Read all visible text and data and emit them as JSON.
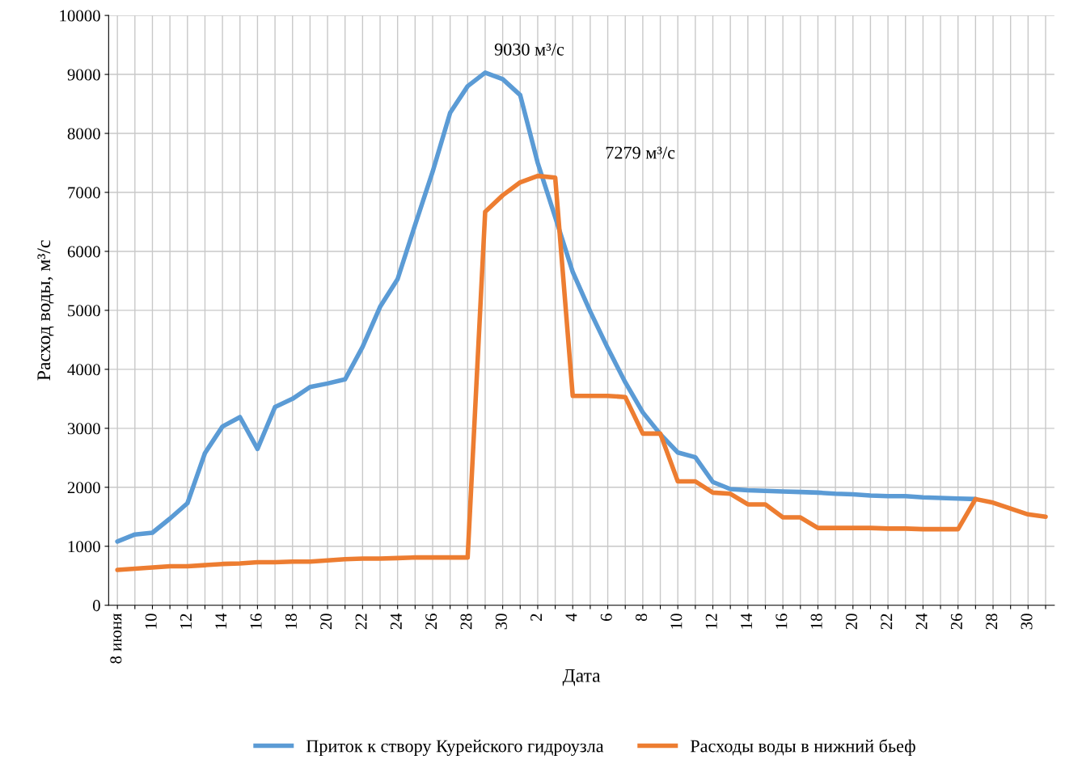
{
  "chart_data": {
    "type": "line",
    "xlabel": "Дата",
    "ylabel": "Расход воды, м³/с",
    "categories": [
      "8 июня",
      null,
      "10",
      null,
      "12",
      null,
      "14",
      null,
      "16",
      null,
      "18",
      null,
      "20",
      null,
      "22",
      null,
      "24",
      null,
      "26",
      null,
      "28",
      null,
      "30",
      null,
      "2",
      null,
      "4",
      null,
      "6",
      null,
      "8",
      null,
      "10",
      null,
      "12",
      null,
      "14",
      null,
      "16",
      null,
      "18",
      null,
      "20",
      null,
      "22",
      null,
      "24",
      null,
      "26",
      null,
      "28",
      null,
      "30",
      null
    ],
    "series": [
      {
        "name": "Приток к створу Курейского гидроузла",
        "color": "#5b9bd5",
        "values": [
          1080,
          1200,
          1230,
          1470,
          1730,
          2580,
          3030,
          3190,
          2650,
          3360,
          3500,
          3700,
          3760,
          3830,
          4380,
          5060,
          5530,
          6450,
          7350,
          8350,
          8800,
          9030,
          8920,
          8650,
          7500,
          6580,
          5650,
          4980,
          4360,
          3780,
          3270,
          2900,
          2590,
          2510,
          2090,
          1970,
          1950,
          1940,
          1930,
          1920,
          1910,
          1890,
          1880,
          1860,
          1850,
          1850,
          1830,
          1820,
          1810,
          1800,
          null,
          null,
          null,
          null
        ]
      },
      {
        "name": "Расходы воды в нижний бьеф",
        "color": "#ed7d31",
        "values": [
          600,
          620,
          640,
          660,
          660,
          680,
          700,
          710,
          730,
          730,
          740,
          740,
          760,
          780,
          790,
          790,
          800,
          810,
          810,
          810,
          810,
          6670,
          6950,
          7170,
          7279,
          7250,
          3550,
          3550,
          3550,
          3530,
          2910,
          2910,
          2100,
          2100,
          1910,
          1890,
          1710,
          1710,
          1490,
          1490,
          1310,
          1310,
          1310,
          1310,
          1300,
          1300,
          1290,
          1290,
          1290,
          1800,
          1740,
          1640,
          1540,
          1500
        ]
      }
    ],
    "annotations": [
      "9030 м³/с",
      "7279 м³/с"
    ],
    "ylim": [
      0,
      10000
    ],
    "yticks": [
      0,
      1000,
      2000,
      3000,
      4000,
      5000,
      6000,
      7000,
      8000,
      9000,
      10000
    ],
    "grid": true,
    "legend": "bottom",
    "marker": "none",
    "line_style": "solid"
  }
}
